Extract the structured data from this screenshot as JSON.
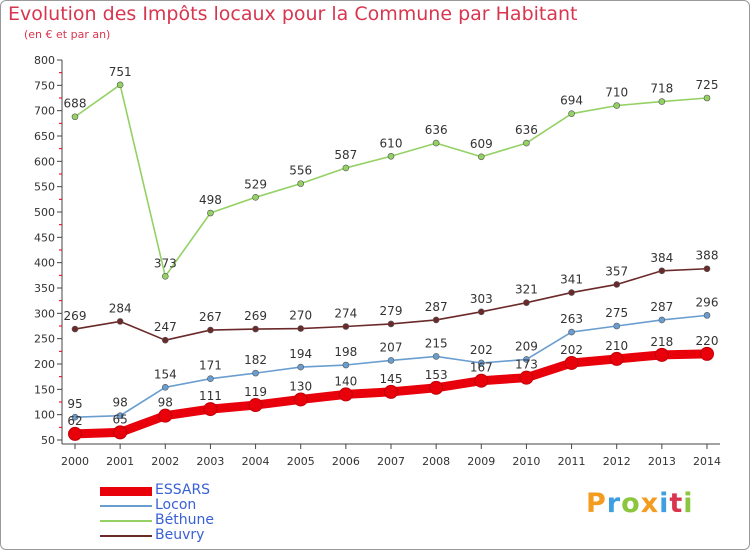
{
  "header": {
    "title": "Evolution des Impôts locaux pour la Commune par Habitant",
    "subtitle": "(en € et par an)"
  },
  "logo": {
    "letters": [
      "P",
      "r",
      "o",
      "x",
      "i",
      "t",
      "i"
    ],
    "colors": [
      "#f39c1f",
      "#3f9fe0",
      "#8cc63f",
      "#f39c1f",
      "#3f9fe0",
      "#d8364f",
      "#8cc63f"
    ]
  },
  "chart_data": {
    "type": "line",
    "title": "Evolution des Impôts locaux pour la Commune par Habitant",
    "subtitle": "(en € et par an)",
    "xlabel": "",
    "ylabel": "",
    "x": [
      "2000",
      "2001",
      "2002",
      "2003",
      "2004",
      "2005",
      "2006",
      "2007",
      "2008",
      "2009",
      "2010",
      "2011",
      "2012",
      "2013",
      "2014"
    ],
    "ylim": [
      50,
      800
    ],
    "yticks": [
      50,
      100,
      150,
      200,
      250,
      300,
      350,
      400,
      450,
      500,
      550,
      600,
      650,
      700,
      750,
      800
    ],
    "grid": false,
    "legend_position": "bottom-left",
    "series": [
      {
        "name": "ESSARS",
        "color": "#e8000b",
        "emphasis": true,
        "values": [
          62,
          65,
          98,
          111,
          119,
          130,
          140,
          145,
          153,
          167,
          173,
          202,
          210,
          218,
          220
        ]
      },
      {
        "name": "Locon",
        "color": "#6a9ed0",
        "emphasis": false,
        "values": [
          95,
          98,
          154,
          171,
          182,
          194,
          198,
          207,
          215,
          202,
          209,
          263,
          275,
          287,
          296
        ]
      },
      {
        "name": "Béthune",
        "color": "#94d164",
        "emphasis": false,
        "values": [
          688,
          751,
          373,
          498,
          529,
          556,
          587,
          610,
          636,
          609,
          636,
          694,
          710,
          718,
          725
        ]
      },
      {
        "name": "Beuvry",
        "color": "#6b2a2a",
        "emphasis": false,
        "values": [
          269,
          284,
          247,
          267,
          269,
          270,
          274,
          279,
          287,
          303,
          321,
          341,
          357,
          384,
          388
        ]
      }
    ]
  }
}
